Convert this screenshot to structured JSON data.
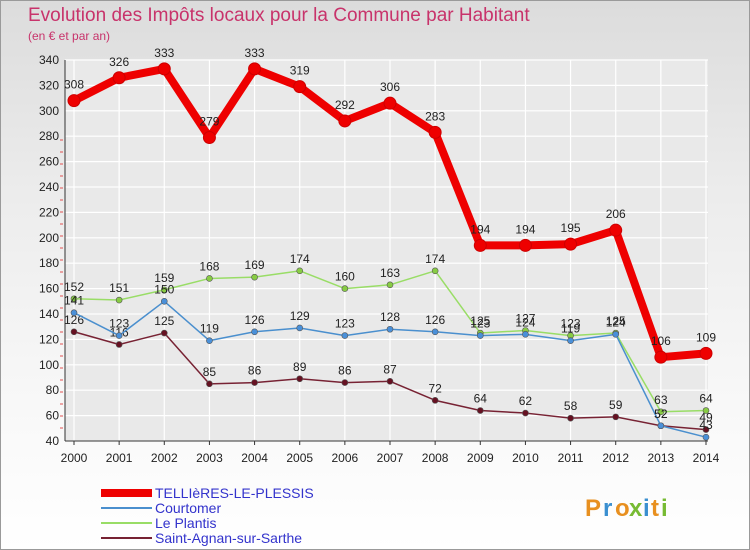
{
  "header": {
    "title": "Evolution des Impôts locaux pour la Commune par Habitant",
    "subtitle": "(en € et par an)"
  },
  "brand": {
    "text": "Proxiti"
  },
  "colors": {
    "title": "#c8336b",
    "series": [
      "#ee0000",
      "#4a8fce",
      "#99dd66",
      "#772233"
    ],
    "markers": [
      "#ee0000",
      "#4a90d9",
      "#88cc44",
      "#661122"
    ],
    "grid": "#ffffff",
    "axis": "#333333"
  },
  "chart_data": {
    "type": "line",
    "title": "Evolution des Impôts locaux pour la Commune par Habitant",
    "subtitle": "(en € et par an)",
    "xlabel": "",
    "ylabel": "",
    "x": [
      "2000",
      "2001",
      "2002",
      "2003",
      "2004",
      "2005",
      "2006",
      "2007",
      "2008",
      "2009",
      "2010",
      "2011",
      "2012",
      "2013",
      "2014"
    ],
    "ylim": [
      40,
      340
    ],
    "yticks": [
      40,
      60,
      80,
      100,
      120,
      140,
      160,
      180,
      200,
      220,
      240,
      260,
      280,
      300,
      320,
      340
    ],
    "grid": true,
    "legend_position": "bottom-left",
    "series": [
      {
        "name": "TELLIèRES-LE-PLESSIS",
        "values": [
          308,
          326,
          333,
          279,
          333,
          319,
          292,
          306,
          283,
          194,
          194,
          195,
          206,
          106,
          109
        ],
        "labels": [
          "308",
          "326",
          "333",
          "279",
          "333",
          "319",
          "292",
          "306",
          "283",
          "194",
          "194",
          "195",
          "206",
          "106",
          "109"
        ]
      },
      {
        "name": "Courtomer",
        "values": [
          141,
          123,
          150,
          119,
          126,
          129,
          123,
          128,
          126,
          123,
          124,
          119,
          124,
          52,
          43
        ],
        "labels": [
          "141",
          "123",
          "150",
          "119",
          "126",
          "129",
          "123",
          "128",
          "126",
          "123",
          "124",
          "119",
          "124",
          "52",
          "43"
        ]
      },
      {
        "name": "Le Plantis",
        "values": [
          152,
          151,
          159,
          168,
          169,
          174,
          160,
          163,
          174,
          125,
          127,
          123,
          125,
          63,
          64
        ],
        "labels": [
          "152",
          "151",
          "159",
          "168",
          "169",
          "174",
          "160",
          "163",
          "174",
          "125",
          "127",
          "123",
          "125",
          "63",
          "64"
        ]
      },
      {
        "name": "Saint-Agnan-sur-Sarthe",
        "values": [
          126,
          116,
          125,
          85,
          86,
          89,
          86,
          87,
          72,
          64,
          62,
          58,
          59,
          52,
          49
        ],
        "labels": [
          "126",
          "116",
          "125",
          "85",
          "86",
          "89",
          "86",
          "87",
          "72",
          "64",
          "62",
          "58",
          "59",
          "52",
          "49"
        ]
      }
    ]
  }
}
